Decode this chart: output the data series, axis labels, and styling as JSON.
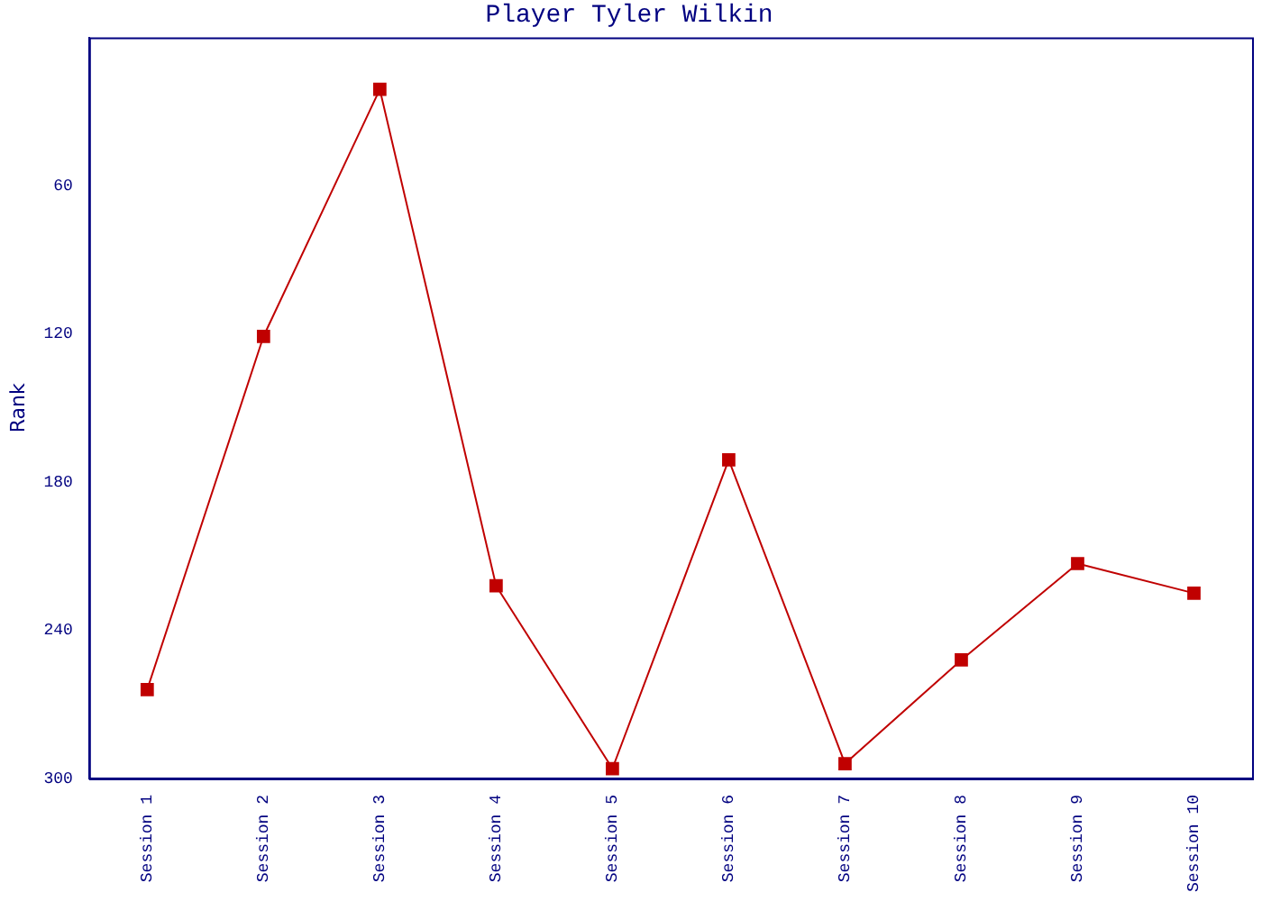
{
  "chart_data": {
    "type": "line",
    "title": "Player Tyler Wilkin",
    "ylabel": "Rank",
    "categories": [
      "Session 1",
      "Session 2",
      "Session 3",
      "Session 4",
      "Session 5",
      "Session 6",
      "Session 7",
      "Session 8",
      "Session 9",
      "Session 10"
    ],
    "series": [
      {
        "color": "#c00000",
        "values": [
          264,
          121,
          21,
          222,
          296,
          171,
          294,
          252,
          213,
          225
        ]
      }
    ],
    "ylim": [
      300,
      0
    ],
    "yticks": [
      60,
      120,
      180,
      240,
      300
    ],
    "grid": false,
    "legend": false,
    "marker": "square",
    "line_style": "solid"
  }
}
